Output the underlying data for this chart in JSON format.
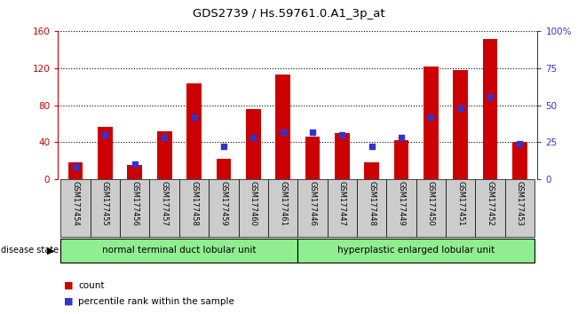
{
  "title": "GDS2739 / Hs.59761.0.A1_3p_at",
  "categories": [
    "GSM177454",
    "GSM177455",
    "GSM177456",
    "GSM177457",
    "GSM177458",
    "GSM177459",
    "GSM177460",
    "GSM177461",
    "GSM177446",
    "GSM177447",
    "GSM177448",
    "GSM177449",
    "GSM177450",
    "GSM177451",
    "GSM177452",
    "GSM177453"
  ],
  "count_values": [
    18,
    57,
    15,
    52,
    104,
    22,
    76,
    113,
    46,
    50,
    18,
    42,
    122,
    118,
    152,
    40
  ],
  "percentile_values": [
    8,
    30,
    10,
    28,
    42,
    22,
    28,
    32,
    32,
    30,
    22,
    28,
    42,
    48,
    56,
    24
  ],
  "group1_label": "normal terminal duct lobular unit",
  "group2_label": "hyperplastic enlarged lobular unit",
  "group1_count": 8,
  "group2_count": 8,
  "disease_state_label": "disease state",
  "ylim_left": [
    0,
    160
  ],
  "ylim_right": [
    0,
    100
  ],
  "yticks_left": [
    0,
    40,
    80,
    120,
    160
  ],
  "yticks_right": [
    0,
    25,
    50,
    75,
    100
  ],
  "ytick_labels_right": [
    "0",
    "25",
    "50",
    "75",
    "100%"
  ],
  "bar_color": "#cc0000",
  "dot_color": "#3333cc",
  "group1_bg": "#90ee90",
  "group2_bg": "#90ee90",
  "xticklabel_bg": "#cccccc",
  "left_axis_color": "#cc0000",
  "right_axis_color": "#3333cc",
  "bar_width": 0.5,
  "dot_size": 22,
  "legend_count_label": "count",
  "legend_percentile_label": "percentile rank within the sample"
}
